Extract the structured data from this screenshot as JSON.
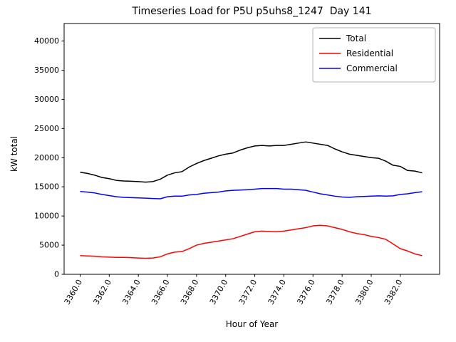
{
  "title": "Timeseries Load for P5U p5uhs8_1247  Day 141",
  "chart_data": {
    "type": "line",
    "title": "Timeseries Load for P5U p5uhs8_1247  Day 141",
    "xlabel": "Hour of Year",
    "ylabel": "kW total",
    "xlim": [
      3358.9,
      3384.7
    ],
    "ylim": [
      0,
      43000
    ],
    "grid": false,
    "legend_position": "upper right",
    "xticks": [
      3360,
      3362,
      3364,
      3366,
      3368,
      3370,
      3372,
      3374,
      3376,
      3378,
      3380,
      3382
    ],
    "xtick_labels": [
      "3360.0",
      "3362.0",
      "3364.0",
      "3366.0",
      "3368.0",
      "3370.0",
      "3372.0",
      "3374.0",
      "3376.0",
      "3378.0",
      "3380.0",
      "3382.0"
    ],
    "yticks": [
      0,
      5000,
      10000,
      15000,
      20000,
      25000,
      30000,
      35000,
      40000
    ],
    "x": [
      3360,
      3360.5,
      3361,
      3361.5,
      3362,
      3362.5,
      3363,
      3363.5,
      3364,
      3364.5,
      3365,
      3365.5,
      3366,
      3366.5,
      3367,
      3367.5,
      3368,
      3368.5,
      3369,
      3369.5,
      3370,
      3370.5,
      3371,
      3371.5,
      3372,
      3372.5,
      3373,
      3373.5,
      3374,
      3374.5,
      3375,
      3375.5,
      3376,
      3376.5,
      3377,
      3377.5,
      3378,
      3378.5,
      3379,
      3379.5,
      3380,
      3380.5,
      3381,
      3381.5,
      3382,
      3382.5,
      3383,
      3383.5
    ],
    "series": [
      {
        "name": "Total",
        "color": "#000000",
        "values": [
          17500,
          17300,
          17000,
          16600,
          16400,
          16100,
          16000,
          15950,
          15900,
          15800,
          15900,
          16300,
          17000,
          17400,
          17600,
          18400,
          19000,
          19500,
          19900,
          20300,
          20600,
          20800,
          21300,
          21700,
          22000,
          22100,
          22000,
          22100,
          22100,
          22300,
          22500,
          22700,
          22500,
          22300,
          22100,
          21500,
          21000,
          20600,
          20400,
          20200,
          20000,
          19900,
          19400,
          18700,
          18500,
          17800,
          17700,
          17400
        ]
      },
      {
        "name": "Residential",
        "color": "#ff0000",
        "values": [
          3200,
          3150,
          3100,
          3000,
          2950,
          2900,
          2900,
          2850,
          2800,
          2750,
          2800,
          3000,
          3500,
          3800,
          3900,
          4400,
          5000,
          5300,
          5500,
          5700,
          5900,
          6100,
          6500,
          6900,
          7300,
          7400,
          7350,
          7300,
          7400,
          7600,
          7800,
          8000,
          8300,
          8400,
          8300,
          8000,
          7700,
          7300,
          7000,
          6800,
          6500,
          6300,
          6000,
          5200,
          4400,
          4000,
          3500,
          3200
        ]
      },
      {
        "name": "Commercial",
        "color": "#0000ff",
        "values": [
          14200,
          14100,
          13950,
          13700,
          13500,
          13300,
          13200,
          13150,
          13100,
          13050,
          13000,
          12950,
          13300,
          13400,
          13400,
          13600,
          13700,
          13900,
          14000,
          14100,
          14300,
          14400,
          14450,
          14500,
          14600,
          14700,
          14700,
          14700,
          14600,
          14600,
          14500,
          14400,
          14100,
          13800,
          13600,
          13400,
          13250,
          13200,
          13300,
          13350,
          13400,
          13450,
          13400,
          13450,
          13700,
          13800,
          14000,
          14150
        ]
      }
    ]
  }
}
